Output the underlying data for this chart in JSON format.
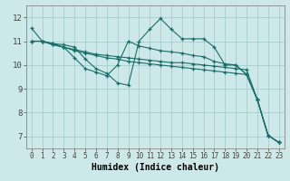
{
  "title": "",
  "xlabel": "Humidex (Indice chaleur)",
  "bg_color": "#cce8e8",
  "grid_color": "#aacccc",
  "line_color": "#1a6e6a",
  "xlim": [
    -0.5,
    23.5
  ],
  "ylim": [
    6.5,
    12.5
  ],
  "xticks": [
    0,
    1,
    2,
    3,
    4,
    5,
    6,
    7,
    8,
    9,
    10,
    11,
    12,
    13,
    14,
    15,
    16,
    17,
    18,
    19,
    20,
    21,
    22,
    23
  ],
  "yticks": [
    7,
    8,
    9,
    10,
    11,
    12
  ],
  "series": [
    [
      11.55,
      11.0,
      10.9,
      10.85,
      10.75,
      10.25,
      9.85,
      9.65,
      9.25,
      9.15,
      11.0,
      11.5,
      11.95,
      11.5,
      11.1,
      11.1,
      11.1,
      10.75,
      10.0,
      10.0,
      9.6,
      8.55,
      7.05,
      6.75
    ],
    [
      11.0,
      11.0,
      10.9,
      10.75,
      10.3,
      9.85,
      9.7,
      9.55,
      10.0,
      11.0,
      10.8,
      10.7,
      10.6,
      10.55,
      10.5,
      10.4,
      10.35,
      10.15,
      10.05,
      10.0,
      9.6,
      8.55,
      7.05,
      6.75
    ],
    [
      11.0,
      11.0,
      10.85,
      10.75,
      10.6,
      10.5,
      10.4,
      10.3,
      10.25,
      10.15,
      10.1,
      10.05,
      10.0,
      9.95,
      9.9,
      9.85,
      9.8,
      9.75,
      9.7,
      9.65,
      9.6,
      8.55,
      7.05,
      6.75
    ],
    [
      11.0,
      11.0,
      10.85,
      10.75,
      10.65,
      10.55,
      10.45,
      10.4,
      10.35,
      10.3,
      10.25,
      10.2,
      10.15,
      10.1,
      10.1,
      10.05,
      10.0,
      9.95,
      9.9,
      9.85,
      9.8,
      8.55,
      7.05,
      6.75
    ]
  ],
  "xlabel_fontsize": 7,
  "tick_fontsize": 5.5,
  "ytick_fontsize": 6.5
}
